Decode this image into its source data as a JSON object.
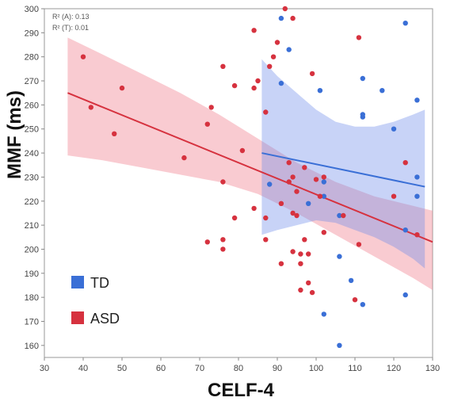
{
  "chart_data": {
    "type": "scatter",
    "xlabel": "CELF-4",
    "ylabel": "MMF (ms)",
    "xlim": [
      30,
      130
    ],
    "ylim": [
      155,
      300
    ],
    "xticks": [
      30,
      40,
      50,
      60,
      70,
      80,
      90,
      100,
      110,
      120,
      130
    ],
    "yticks": [
      160,
      170,
      180,
      190,
      200,
      210,
      220,
      230,
      240,
      250,
      260,
      270,
      280,
      290,
      300
    ],
    "grid": false,
    "legend_position": "bottom-left",
    "annotations": [
      "R² (A): 0.13",
      "R² (T): 0.01"
    ],
    "series": [
      {
        "name": "TD",
        "color": "#3a6fd6",
        "points": [
          [
            91,
            296
          ],
          [
            93,
            283
          ],
          [
            91,
            269
          ],
          [
            101,
            266
          ],
          [
            112,
            271
          ],
          [
            123,
            294
          ],
          [
            126,
            262
          ],
          [
            112,
            255
          ],
          [
            112,
            256
          ],
          [
            120,
            250
          ],
          [
            117,
            266
          ],
          [
            88,
            227
          ],
          [
            102,
            228
          ],
          [
            102,
            222
          ],
          [
            98,
            219
          ],
          [
            126,
            222
          ],
          [
            126,
            230
          ],
          [
            106,
            214
          ],
          [
            123,
            208
          ],
          [
            106,
            197
          ],
          [
            109,
            187
          ],
          [
            123,
            181
          ],
          [
            112,
            177
          ],
          [
            102,
            173
          ],
          [
            106,
            160
          ]
        ],
        "fit": {
          "x": [
            86,
            128
          ],
          "y": [
            240,
            226
          ]
        },
        "ci_band": {
          "x": [
            86,
            90,
            95,
            100,
            105,
            110,
            115,
            120,
            125,
            128
          ],
          "upper": [
            279,
            272,
            265,
            258,
            253,
            251,
            251,
            253,
            256,
            258
          ],
          "lower": [
            206,
            208,
            210,
            212,
            211,
            208,
            205,
            201,
            196,
            192
          ]
        }
      },
      {
        "name": "ASD",
        "color": "#d6323f",
        "points": [
          [
            40,
            280
          ],
          [
            42,
            259
          ],
          [
            48,
            248
          ],
          [
            50,
            267
          ],
          [
            66,
            238
          ],
          [
            72,
            252
          ],
          [
            73,
            259
          ],
          [
            76,
            276
          ],
          [
            79,
            268
          ],
          [
            81,
            241
          ],
          [
            76,
            228
          ],
          [
            72,
            203
          ],
          [
            76,
            204
          ],
          [
            76,
            200
          ],
          [
            79,
            213
          ],
          [
            84,
            267
          ],
          [
            84,
            291
          ],
          [
            85,
            270
          ],
          [
            87,
            257
          ],
          [
            88,
            276
          ],
          [
            89,
            280
          ],
          [
            90,
            286
          ],
          [
            92,
            300
          ],
          [
            94,
            296
          ],
          [
            99,
            273
          ],
          [
            91,
            194
          ],
          [
            93,
            228
          ],
          [
            93,
            236
          ],
          [
            94,
            230
          ],
          [
            94,
            215
          ],
          [
            95,
            214
          ],
          [
            94,
            199
          ],
          [
            96,
            198
          ],
          [
            96,
            194
          ],
          [
            96,
            183
          ],
          [
            97,
            204
          ],
          [
            97,
            234
          ],
          [
            98,
            198
          ],
          [
            98,
            186
          ],
          [
            99,
            182
          ],
          [
            100,
            229
          ],
          [
            101,
            222
          ],
          [
            102,
            230
          ],
          [
            102,
            207
          ],
          [
            107,
            214
          ],
          [
            110,
            179
          ],
          [
            111,
            288
          ],
          [
            111,
            202
          ],
          [
            120,
            222
          ],
          [
            123,
            236
          ],
          [
            126,
            206
          ],
          [
            84,
            217
          ],
          [
            87,
            204
          ],
          [
            87,
            213
          ],
          [
            91,
            219
          ],
          [
            95,
            224
          ]
        ],
        "fit": {
          "x": [
            36,
            130
          ],
          "y": [
            265,
            203
          ]
        },
        "ci_band": {
          "x": [
            36,
            45,
            55,
            65,
            75,
            85,
            95,
            105,
            115,
            125,
            130
          ],
          "upper": [
            288,
            281,
            273,
            265,
            256,
            246,
            236,
            228,
            222,
            218,
            216
          ],
          "lower": [
            239,
            237,
            234,
            231,
            228,
            223,
            215,
            206,
            197,
            188,
            183
          ]
        }
      }
    ]
  }
}
